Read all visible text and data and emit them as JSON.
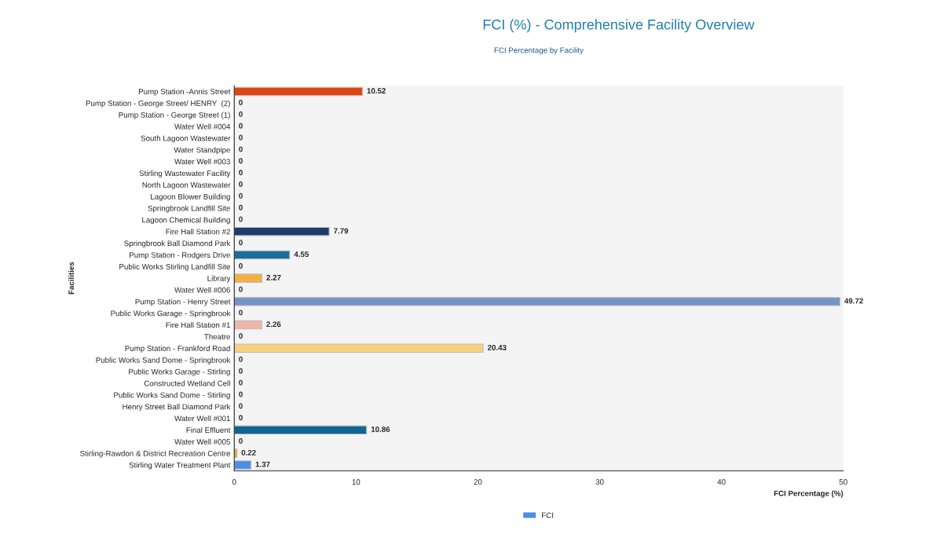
{
  "chart_data": {
    "type": "bar",
    "orientation": "horizontal",
    "title": "FCI (%) - Comprehensive Facility Overview",
    "subtitle": "FCI Percentage by Facility",
    "xlabel": "FCI Percentage (%)",
    "ylabel": "Facilities",
    "categories": [
      "Pump Station -Annis Street",
      "Pump Station - George Street/ HENRY  (2)",
      "Pump Station - George Street (1)",
      "Water Well #004",
      "South Lagoon Wastewater",
      "Water Standpipe",
      "Water Well #003",
      "Stirling Wastewater Facility",
      "North Lagoon Wastewater",
      "Lagoon Blower Building",
      "Springbrook Landfill Site",
      "Lagoon Chemical Building",
      "Fire Hall Station #2",
      "Springbrook Ball Diamond Park",
      "Pump Station - Rodgers Drive",
      "Public Works Stirling Landfill Site",
      "Library",
      "Water Well #006",
      "Pump Station - Henry Street",
      "Public Works Garage - Springbrook",
      "Fire Hall Station #1",
      "Theatre",
      "Pump Station - Frankford Road",
      "Public Works Sand Dome - Springbrook",
      "Public Works Garage - Stirling",
      "Constructed Wetland Cell",
      "Public Works Sand Dome - Stirling",
      "Henry Street Ball Diamond Park",
      "Water Well #001",
      "Final Effluent",
      "Water Well #005",
      "Stirling-Rawdon & District Recreation Centre",
      "Stirling Water Treatment Plant"
    ],
    "series": [
      {
        "name": "FCI",
        "color": "#4a8fe6",
        "values": [
          10.52,
          0,
          0,
          0,
          0,
          0,
          0,
          0,
          0,
          0,
          0,
          0,
          7.79,
          0,
          4.55,
          0,
          2.27,
          0,
          49.72,
          0,
          2.26,
          0,
          20.43,
          0,
          0,
          0,
          0,
          0,
          0,
          10.86,
          0,
          0.22,
          1.37
        ],
        "colors": [
          "#e0440e",
          "#bbbbbb",
          "#bbbbbb",
          "#bbbbbb",
          "#bbbbbb",
          "#bbbbbb",
          "#bbbbbb",
          "#bbbbbb",
          "#bbbbbb",
          "#bbbbbb",
          "#bbbbbb",
          "#bbbbbb",
          "#1f3a6b",
          "#bbbbbb",
          "#1a6e9e",
          "#bbbbbb",
          "#f5b041",
          "#bbbbbb",
          "#7394c4",
          "#bbbbbb",
          "#f0b5a8",
          "#bbbbbb",
          "#f7d07c",
          "#bbbbbb",
          "#bbbbbb",
          "#bbbbbb",
          "#bbbbbb",
          "#bbbbbb",
          "#bbbbbb",
          "#0f6593",
          "#bbbbbb",
          "#e8a33c",
          "#4a8fe6"
        ]
      }
    ],
    "xlim": [
      0,
      50
    ],
    "xticks": [
      0,
      10,
      20,
      30,
      40,
      50
    ],
    "data_labels": true,
    "grid": false,
    "legend": "bottom"
  }
}
